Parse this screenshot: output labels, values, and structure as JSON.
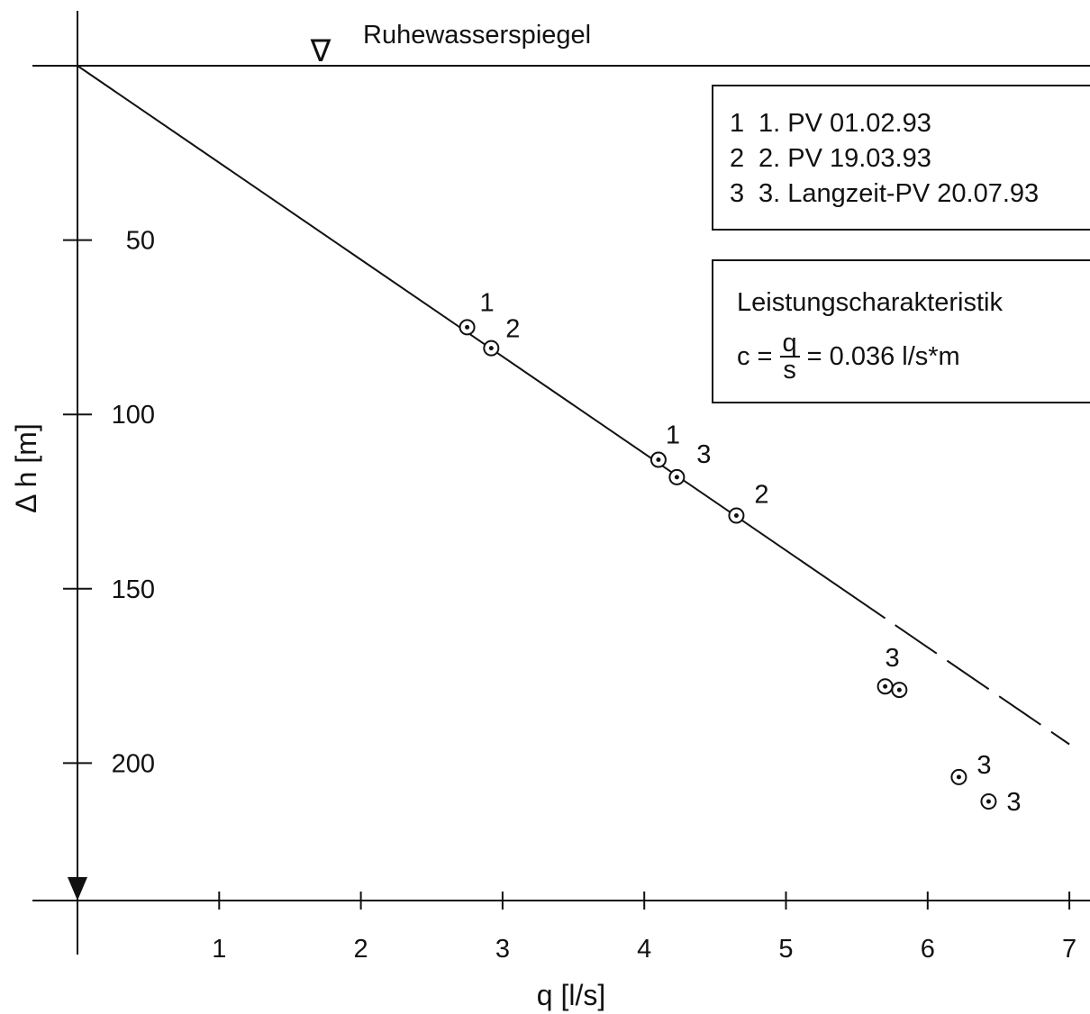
{
  "chart_data": {
    "type": "scatter",
    "title": "",
    "xlabel": "q [l/s]",
    "ylabel": "Δ h [m]",
    "xlim": [
      0,
      7
    ],
    "ylim": [
      0,
      240
    ],
    "y_inverted": true,
    "x_ticks": [
      1,
      2,
      3,
      4,
      5,
      6,
      7
    ],
    "y_ticks": [
      50,
      100,
      150,
      200
    ],
    "reference_line": {
      "label": "Ruhewasserspiegel",
      "y": 0,
      "marker": "∇"
    },
    "fit_line": {
      "slope_m_per_lps": 27.8,
      "solid_until_x": 5.7,
      "dashed_until_x": 7.0
    },
    "points": [
      {
        "x": 2.75,
        "y": 75,
        "label": "1"
      },
      {
        "x": 2.92,
        "y": 81,
        "label": "2"
      },
      {
        "x": 4.1,
        "y": 113,
        "label": "1"
      },
      {
        "x": 4.23,
        "y": 118,
        "label": "3"
      },
      {
        "x": 4.65,
        "y": 129,
        "label": "2"
      },
      {
        "x": 5.7,
        "y": 178,
        "label": "3"
      },
      {
        "x": 5.8,
        "y": 179,
        "label": ""
      },
      {
        "x": 6.22,
        "y": 204,
        "label": "3"
      },
      {
        "x": 6.43,
        "y": 211,
        "label": "3"
      }
    ]
  },
  "legend": {
    "items": [
      {
        "num": "1",
        "text": "1. PV 01.02.93"
      },
      {
        "num": "2",
        "text": "2. PV 19.03.93"
      },
      {
        "num": "3",
        "text": "3. Langzeit-PV 20.07.93"
      }
    ]
  },
  "performance": {
    "title": "Leistungscharakteristik",
    "lhs": "c =",
    "numerator": "q",
    "denominator": "s",
    "rhs": "= 0.036 l/s*m"
  }
}
